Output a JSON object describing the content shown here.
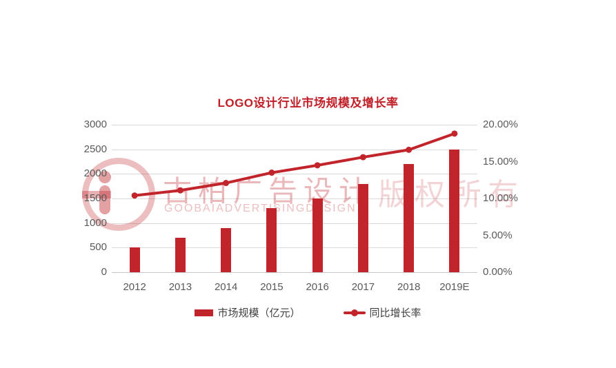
{
  "title": "LOGO设计行业市场规模及增长率",
  "colors": {
    "accent": "#C2242C",
    "title": "#C01F27",
    "grid": "#D9D9D9",
    "axis_text": "#595959",
    "legend_text": "#404040",
    "watermark": "#C82830"
  },
  "watermark": {
    "logo": "goobai-g-logo",
    "cn": "古柏广告设计",
    "en": "GOOBAIADVERTISINGDESIGN",
    "right": "版权所有"
  },
  "chart_data": {
    "type": "bar",
    "title": "LOGO设计行业市场规模及增长率",
    "categories": [
      "2012",
      "2013",
      "2014",
      "2015",
      "2016",
      "2017",
      "2018",
      "2019E"
    ],
    "series": [
      {
        "name": "市场规模（亿元）",
        "type": "bar",
        "axis": "left",
        "values": [
          500,
          700,
          900,
          1300,
          1500,
          1800,
          2200,
          2500
        ]
      },
      {
        "name": "同比增长率",
        "type": "line",
        "axis": "right",
        "values": [
          10.4,
          11.1,
          12.1,
          13.5,
          14.5,
          15.6,
          16.6,
          18.8
        ]
      }
    ],
    "left_axis": {
      "min": 0,
      "max": 3000,
      "step": 500,
      "ticks": [
        "3000",
        "2500",
        "2000",
        "1500",
        "1000",
        "500",
        "0"
      ]
    },
    "right_axis": {
      "min": 0,
      "max": 20,
      "step": 5,
      "ticks": [
        "20.00%",
        "15.00%",
        "10.00%",
        "5.00%",
        "0.00%"
      ]
    },
    "grid": "horizontal",
    "legend_position": "bottom",
    "legend": [
      {
        "label": "市场规模（亿元）",
        "type": "bar"
      },
      {
        "label": "同比增长率",
        "type": "line"
      }
    ]
  }
}
